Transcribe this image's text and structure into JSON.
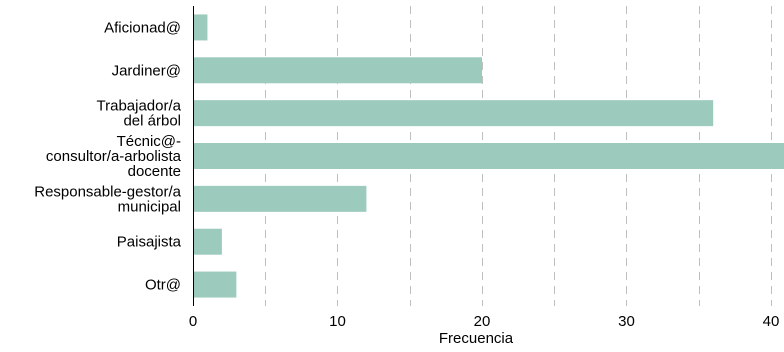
{
  "chart_data": {
    "type": "bar",
    "orientation": "horizontal",
    "categories": [
      [
        "Aficionad@"
      ],
      [
        "Jardiner@"
      ],
      [
        "Trabajador/a",
        "del árbol"
      ],
      [
        "Técnic@-",
        "consultor/a-arbolista",
        "docente"
      ],
      [
        "Responsable-gestor/a",
        "municipal"
      ],
      [
        "Paisajista"
      ],
      [
        "Otr@"
      ]
    ],
    "values": [
      1,
      20,
      36,
      42,
      12,
      2,
      3
    ],
    "xlabel": "Frecuencia",
    "ylabel": "",
    "xlim": [
      0,
      40.9
    ],
    "xticks": [
      0,
      10,
      20,
      30,
      40
    ],
    "xtick_labels": [
      "0",
      "10",
      "20",
      "30",
      "40"
    ],
    "minor_xticks": [
      5,
      15,
      25,
      35
    ],
    "grid": "x-dashed",
    "bar_color": "#9ccbbd",
    "grid_color": "#bfbfbf"
  }
}
